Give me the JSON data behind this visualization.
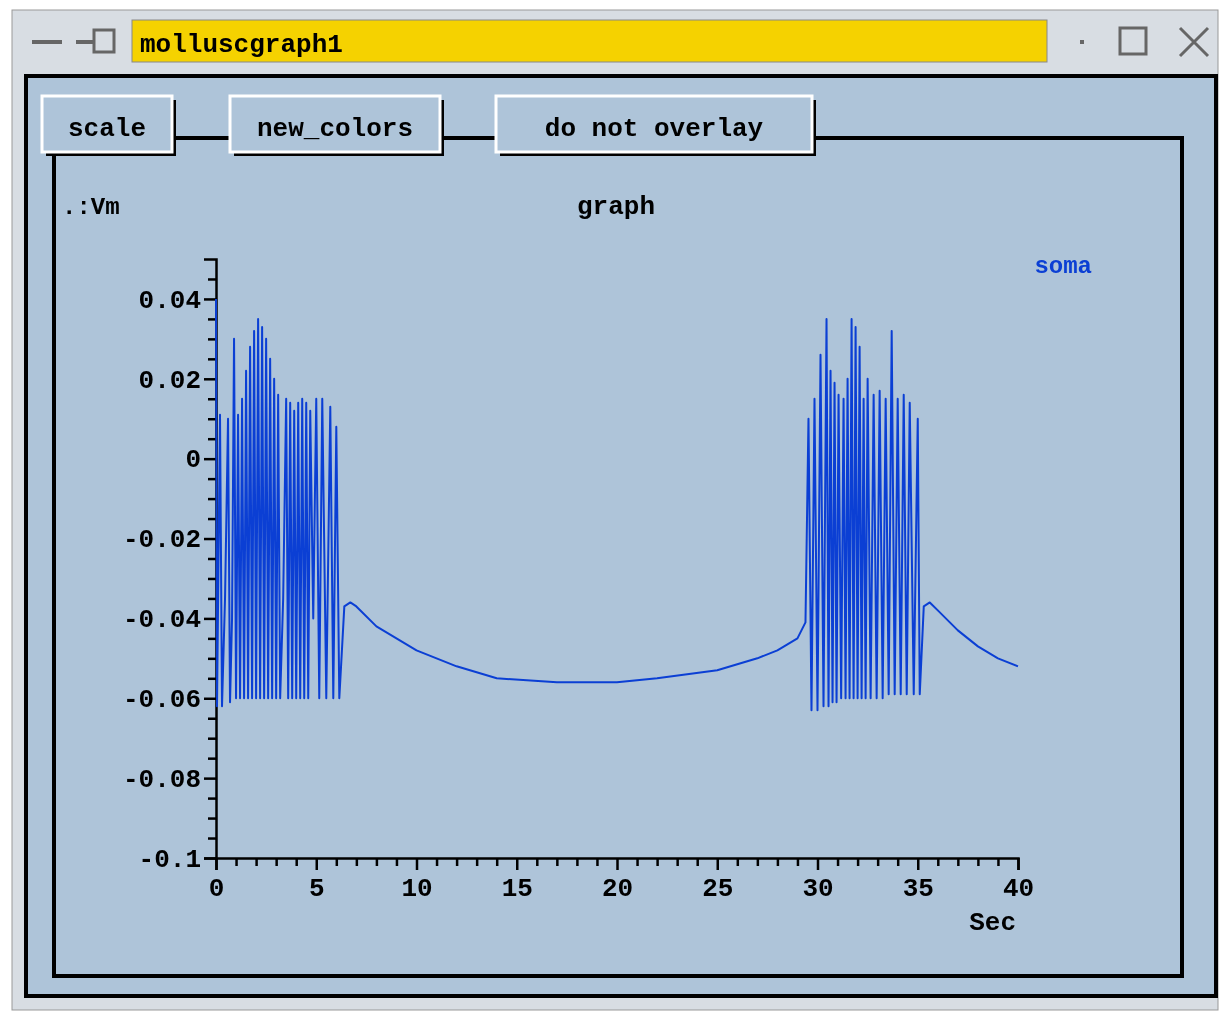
{
  "chart_data": {
    "type": "line",
    "title": "graph",
    "xlabel": "Sec",
    "ylabel": ".:Vm",
    "legend": "top right",
    "annotations": [
      "molluscgraph1",
      "scale",
      "new_colors",
      "do not overlay"
    ],
    "xlim": [
      0,
      40
    ],
    "ylim": [
      -0.1,
      0.05
    ],
    "xticks": [
      0,
      {
        "value": 1,
        "label": null
      },
      {
        "value": 2,
        "label": null
      },
      {
        "value": 3,
        "label": null
      },
      {
        "value": 4,
        "label": null
      },
      5,
      {
        "value": 6,
        "label": null
      },
      {
        "value": 7,
        "label": null
      },
      {
        "value": 8,
        "label": null
      },
      {
        "value": 9,
        "label": null
      },
      10,
      {
        "value": 11,
        "label": null
      },
      {
        "value": 12,
        "label": null
      },
      {
        "value": 13,
        "label": null
      },
      {
        "value": 14,
        "label": null
      },
      15,
      {
        "value": 16,
        "label": null
      },
      {
        "value": 17,
        "label": null
      },
      {
        "value": 18,
        "label": null
      },
      {
        "value": 19,
        "label": null
      },
      20,
      {
        "value": 21,
        "label": null
      },
      {
        "value": 22,
        "label": null
      },
      {
        "value": 23,
        "label": null
      },
      {
        "value": 24,
        "label": null
      },
      25,
      {
        "value": 26,
        "label": null
      },
      {
        "value": 27,
        "label": null
      },
      {
        "value": 28,
        "label": null
      },
      {
        "value": 29,
        "label": null
      },
      30,
      {
        "value": 31,
        "label": null
      },
      {
        "value": 32,
        "label": null
      },
      {
        "value": 33,
        "label": null
      },
      {
        "value": 34,
        "label": null
      },
      35,
      {
        "value": 36,
        "label": null
      },
      {
        "value": 37,
        "label": null
      },
      {
        "value": 38,
        "label": null
      },
      {
        "value": 39,
        "label": null
      },
      40
    ],
    "yticks": [
      -0.1,
      {
        "value": -0.095,
        "label": null
      },
      {
        "value": -0.09,
        "label": null
      },
      {
        "value": -0.085,
        "label": null
      },
      -0.08,
      {
        "value": -0.075,
        "label": null
      },
      {
        "value": -0.07,
        "label": null
      },
      {
        "value": -0.065,
        "label": null
      },
      -0.06,
      {
        "value": -0.055,
        "label": null
      },
      {
        "value": -0.05,
        "label": null
      },
      {
        "value": -0.045,
        "label": null
      },
      -0.04,
      {
        "value": -0.035,
        "label": null
      },
      {
        "value": -0.03,
        "label": null
      },
      {
        "value": -0.025,
        "label": null
      },
      -0.02,
      {
        "value": -0.015,
        "label": null
      },
      {
        "value": -0.01,
        "label": null
      },
      {
        "value": -0.005,
        "label": null
      },
      0,
      {
        "value": 0.005,
        "label": null
      },
      {
        "value": 0.01,
        "label": null
      },
      {
        "value": 0.015,
        "label": null
      },
      0.02,
      {
        "value": 0.025,
        "label": null
      },
      {
        "value": 0.03,
        "label": null
      },
      {
        "value": 0.035,
        "label": null
      },
      0.04,
      {
        "value": 0.045,
        "label": null
      }
    ],
    "series": [
      {
        "name": "soma",
        "color": "#0b3fd4",
        "x": [
          0,
          0.05,
          0.2,
          0.3,
          0.45,
          0.6,
          0.7,
          0.8,
          0.9,
          1.0,
          1.1,
          1.2,
          1.3,
          1.4,
          1.5,
          1.6,
          1.7,
          1.8,
          1.9,
          2.0,
          2.1,
          2.2,
          2.3,
          2.4,
          2.5,
          2.6,
          2.7,
          2.8,
          2.9,
          3.0,
          3.1,
          3.2,
          3.35,
          3.5,
          3.6,
          3.7,
          3.8,
          3.9,
          4.0,
          4.1,
          4.2,
          4.3,
          4.4,
          4.5,
          4.6,
          4.7,
          4.85,
          5.0,
          5.15,
          5.3,
          5.5,
          5.7,
          5.85,
          6.0,
          6.15,
          6.4,
          6.7,
          7,
          8,
          9,
          10,
          12,
          14,
          17,
          20,
          22,
          25,
          27,
          28,
          29,
          29.4,
          29.55,
          29.7,
          29.85,
          30.0,
          30.15,
          30.3,
          30.45,
          30.55,
          30.65,
          30.75,
          30.85,
          30.95,
          31.05,
          31.18,
          31.3,
          31.4,
          31.5,
          31.6,
          31.7,
          31.8,
          31.9,
          32.0,
          32.1,
          32.2,
          32.3,
          32.4,
          32.5,
          32.65,
          32.8,
          32.95,
          33.1,
          33.25,
          33.4,
          33.55,
          33.7,
          33.85,
          34.0,
          34.15,
          34.3,
          34.45,
          34.6,
          34.8,
          35.0,
          35.1,
          35.3,
          35.6,
          36,
          37,
          38,
          39,
          40
        ],
        "values": [
          0.04,
          -0.062,
          0.011,
          -0.062,
          -0.035,
          0.01,
          -0.061,
          -0.04,
          0.03,
          -0.06,
          0.011,
          -0.06,
          0.015,
          -0.06,
          0.022,
          -0.06,
          0.028,
          -0.06,
          0.032,
          -0.06,
          0.035,
          -0.06,
          0.033,
          -0.06,
          0.03,
          -0.06,
          0.025,
          -0.06,
          0.02,
          -0.06,
          0.016,
          -0.06,
          -0.035,
          0.015,
          -0.06,
          0.014,
          -0.06,
          0.012,
          -0.06,
          0.014,
          -0.06,
          0.015,
          -0.06,
          0.014,
          -0.06,
          0.012,
          -0.04,
          0.015,
          -0.06,
          0.015,
          -0.06,
          0.013,
          -0.06,
          0.008,
          -0.06,
          -0.037,
          -0.036,
          -0.037,
          -0.042,
          -0.045,
          -0.048,
          -0.052,
          -0.055,
          -0.056,
          -0.056,
          -0.055,
          -0.053,
          -0.05,
          -0.048,
          -0.045,
          -0.041,
          0.01,
          -0.063,
          0.015,
          -0.063,
          0.026,
          -0.062,
          0.035,
          -0.062,
          0.022,
          -0.061,
          0.019,
          -0.061,
          0.016,
          -0.06,
          0.015,
          -0.06,
          0.02,
          -0.06,
          0.035,
          -0.06,
          0.033,
          -0.06,
          0.028,
          -0.06,
          0.015,
          -0.06,
          0.02,
          -0.06,
          0.016,
          -0.06,
          0.017,
          -0.06,
          0.015,
          -0.059,
          0.032,
          -0.059,
          0.015,
          -0.059,
          0.016,
          -0.059,
          0.014,
          -0.059,
          0.01,
          -0.059,
          -0.037,
          -0.036,
          -0.038,
          -0.043,
          -0.047,
          -0.05,
          -0.052
        ]
      }
    ]
  }
}
